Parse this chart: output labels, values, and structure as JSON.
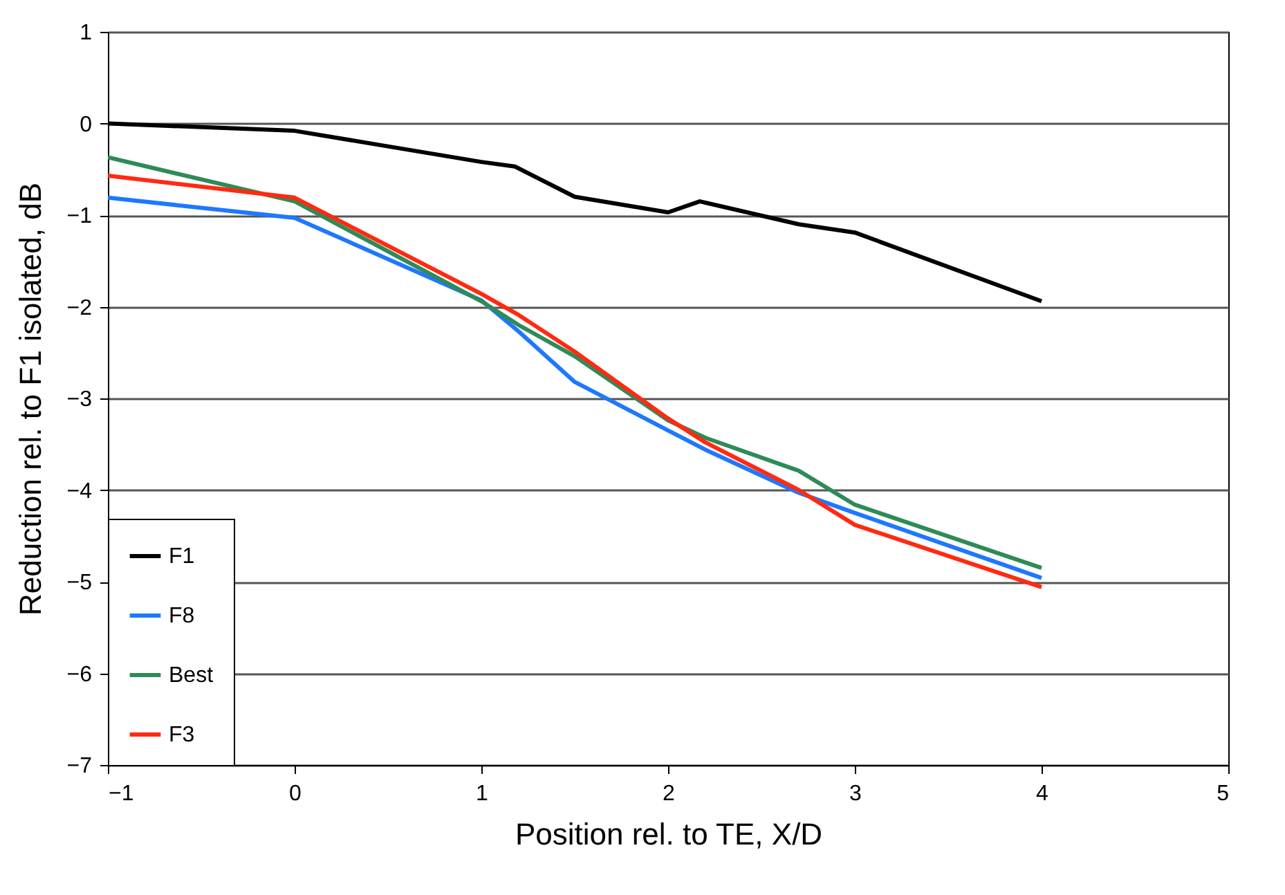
{
  "chart_data": {
    "type": "line",
    "xlabel": "Position rel. to TE, X/D",
    "ylabel": "Reduction rel. to F1 isolated, dB",
    "xlim": [
      -1,
      5
    ],
    "xticks": [
      -1,
      0,
      1,
      2,
      3,
      4,
      5
    ],
    "ylim": [
      -7,
      1
    ],
    "yticks": [
      -7,
      -6,
      -5,
      -4,
      -3,
      -2,
      -1,
      0,
      1
    ],
    "grid": "y",
    "legend": "bottom left",
    "series": [
      {
        "name": "F1",
        "color": "#000000",
        "x": [
          -1,
          0,
          0.5,
          1,
          1.18,
          1.5,
          2,
          2.17,
          2.7,
          3,
          4
        ],
        "values": [
          0,
          -0.08,
          -0.25,
          -0.42,
          -0.47,
          -0.8,
          -0.97,
          -0.85,
          -1.1,
          -1.19,
          -1.94
        ]
      },
      {
        "name": "F8",
        "color": "#1e78ff",
        "x": [
          -1,
          0,
          1,
          1.2,
          1.5,
          2,
          2.2,
          2.7,
          3,
          4
        ],
        "values": [
          -0.81,
          -1.03,
          -1.93,
          -2.27,
          -2.82,
          -3.35,
          -3.56,
          -4.03,
          -4.25,
          -4.96
        ]
      },
      {
        "name": "Best",
        "color": "#2e8b57",
        "x": [
          -1,
          0,
          1,
          1.2,
          1.5,
          2,
          2.2,
          2.7,
          3,
          4
        ],
        "values": [
          -0.37,
          -0.85,
          -1.94,
          -2.2,
          -2.54,
          -3.24,
          -3.43,
          -3.79,
          -4.16,
          -4.85
        ]
      },
      {
        "name": "F3",
        "color": "#ff2a10",
        "x": [
          -1,
          0,
          1,
          1.2,
          1.5,
          2,
          2.2,
          2.7,
          3,
          4
        ],
        "values": [
          -0.57,
          -0.81,
          -1.86,
          -2.09,
          -2.49,
          -3.22,
          -3.48,
          -4.0,
          -4.38,
          -5.06
        ]
      }
    ]
  }
}
